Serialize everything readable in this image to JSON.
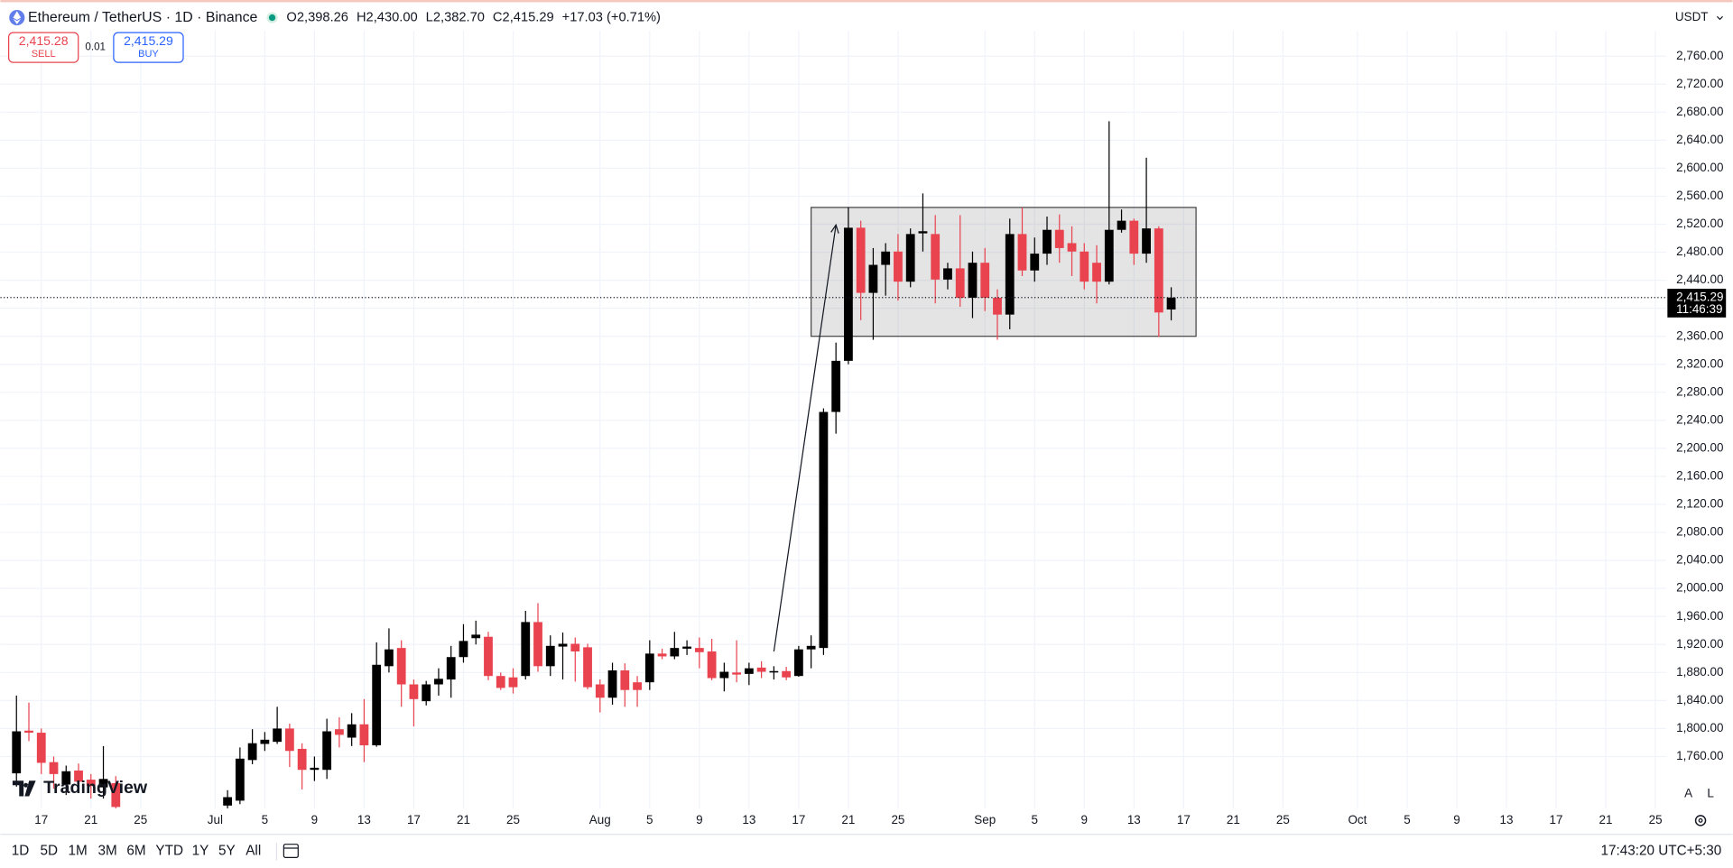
{
  "header": {
    "symbol": "Ethereum / TetherUS · 1D · Binance",
    "ohlc": [
      {
        "key": "O",
        "value": "2,398.26"
      },
      {
        "key": "H",
        "value": "2,430.00"
      },
      {
        "key": "L",
        "value": "2,382.70"
      },
      {
        "key": "C",
        "value": "2,415.29"
      }
    ],
    "change": "+17.03 (+0.71%)"
  },
  "trade": {
    "sell_price": "2,415.28",
    "sell_label": "SELL",
    "spread": "0.01",
    "buy_price": "2,415.29",
    "buy_label": "BUY"
  },
  "currency": "USDT",
  "logo": "TradingView",
  "scale_buttons": [
    "A",
    "L"
  ],
  "timeframes": [
    "1D",
    "5D",
    "1M",
    "3M",
    "6M",
    "YTD",
    "1Y",
    "5Y",
    "All"
  ],
  "clock": "17:43:20 UTC+5:30",
  "chart_data": {
    "type": "candlestick",
    "up_color": "#000000",
    "down_color": "#e8434f",
    "grid": true,
    "categories": [
      "Jun 15",
      "Jun 16",
      "Jun 17",
      "Jun 18",
      "Jun 19",
      "Jun 20",
      "Jun 21",
      "Jun 22",
      "Jun 23",
      "Jul 2",
      "Jul 3",
      "Jul 4",
      "Jul 5",
      "Jul 6",
      "Jul 7",
      "Jul 8",
      "Jul 9",
      "Jul 10",
      "Jul 11",
      "Jul 12",
      "Jul 13",
      "Jul 14",
      "Jul 15",
      "Jul 16",
      "Jul 17",
      "Jul 18",
      "Jul 19",
      "Jul 20",
      "Jul 21",
      "Jul 22",
      "Jul 23",
      "Jul 24",
      "Jul 25",
      "Jul 26",
      "Jul 27",
      "Jul 28",
      "Jul 29",
      "Jul 30",
      "Jul 31",
      "Aug 1",
      "Aug 2",
      "Aug 3",
      "Aug 4",
      "Aug 5",
      "Aug 6",
      "Aug 7",
      "Aug 8",
      "Aug 9",
      "Aug 10",
      "Aug 11",
      "Aug 12",
      "Aug 13",
      "Aug 14",
      "Aug 15",
      "Aug 16",
      "Aug 17",
      "Aug 18",
      "Aug 19",
      "Aug 20",
      "Aug 21",
      "Aug 22",
      "Aug 23",
      "Aug 24",
      "Aug 25",
      "Aug 26",
      "Aug 27",
      "Aug 28",
      "Aug 29",
      "Aug 30",
      "Aug 31",
      "Sep 1",
      "Sep 2",
      "Sep 3",
      "Sep 4",
      "Sep 5",
      "Sep 6",
      "Sep 7",
      "Sep 8",
      "Sep 9",
      "Sep 10",
      "Sep 11",
      "Sep 12",
      "Sep 13",
      "Sep 14",
      "Sep 15",
      "Sep 16"
    ],
    "open": [
      1736,
      1797,
      1794,
      1752,
      1720,
      1740,
      1727,
      1716,
      1722,
      1690,
      1697,
      1755,
      1778,
      1781,
      1800,
      1771,
      1741,
      1741,
      1799,
      1787,
      1806,
      1776,
      1889,
      1915,
      1863,
      1839,
      1863,
      1870,
      1902,
      1929,
      1931,
      1875,
      1873,
      1875,
      1952,
      1889,
      1917,
      1921,
      1916,
      1863,
      1844,
      1883,
      1866,
      1866,
      1907,
      1903,
      1914,
      1915,
      1910,
      1872,
      1880,
      1878,
      1887,
      1880,
      1882,
      1875,
      1913,
      1915,
      2252,
      2325,
      2515,
      2422,
      2462,
      2481,
      2438,
      2507,
      2506,
      2441,
      2457,
      2415,
      2465,
      2415,
      2391,
      2506,
      2454,
      2478,
      2512,
      2493,
      2481,
      2465,
      2438,
      2512,
      2525,
      2478,
      2514,
      2398.26
    ],
    "high": [
      1847,
      1837,
      1800,
      1760,
      1747,
      1750,
      1735,
      1775,
      1732,
      1712,
      1773,
      1799,
      1795,
      1831,
      1807,
      1779,
      1760,
      1814,
      1816,
      1822,
      1842,
      1923,
      1943,
      1926,
      1870,
      1868,
      1886,
      1918,
      1949,
      1954,
      1938,
      1880,
      1886,
      1968,
      1979,
      1933,
      1937,
      1930,
      1921,
      1870,
      1894,
      1893,
      1875,
      1926,
      1914,
      1938,
      1926,
      1930,
      1928,
      1894,
      1926,
      1894,
      1896,
      1889,
      1888,
      1918,
      1933,
      2257,
      2351,
      2544,
      2525,
      2486,
      2493,
      2506,
      2514,
      2564,
      2533,
      2465,
      2533,
      2481,
      2486,
      2427,
      2528,
      2544,
      2501,
      2531,
      2534,
      2517,
      2493,
      2490,
      2667,
      2541,
      2528,
      2615,
      2517,
      2430
    ],
    "low": [
      1717,
      1782,
      1735,
      1714,
      1705,
      1708,
      1700,
      1700,
      1680,
      1683,
      1692,
      1749,
      1768,
      1778,
      1745,
      1713,
      1725,
      1728,
      1773,
      1775,
      1752,
      1774,
      1880,
      1831,
      1803,
      1833,
      1847,
      1844,
      1894,
      1920,
      1869,
      1855,
      1850,
      1870,
      1881,
      1875,
      1870,
      1867,
      1856,
      1823,
      1834,
      1831,
      1831,
      1855,
      1899,
      1899,
      1905,
      1886,
      1869,
      1853,
      1866,
      1862,
      1872,
      1870,
      1869,
      1874,
      1886,
      1905,
      2221,
      2320,
      2383,
      2355,
      2418,
      2411,
      2430,
      2481,
      2407,
      2427,
      2402,
      2386,
      2396,
      2355,
      2370,
      2446,
      2438,
      2462,
      2465,
      2446,
      2427,
      2407,
      2434,
      2508,
      2462,
      2465,
      2359,
      2382.7
    ],
    "close": [
      1796,
      1794,
      1751,
      1735,
      1739,
      1724,
      1718,
      1728,
      1688,
      1702,
      1757,
      1779,
      1784,
      1800,
      1768,
      1741,
      1744,
      1796,
      1791,
      1806,
      1776,
      1891,
      1913,
      1863,
      1842,
      1863,
      1871,
      1902,
      1925,
      1934,
      1875,
      1858,
      1859,
      1952,
      1889,
      1918,
      1921,
      1910,
      1859,
      1844,
      1883,
      1855,
      1855,
      1907,
      1903,
      1915,
      1917,
      1909,
      1872,
      1881,
      1877,
      1886,
      1881,
      1882,
      1873,
      1913,
      1918,
      2252,
      2325,
      2515,
      2422,
      2462,
      2481,
      2438,
      2506,
      2510,
      2441,
      2457,
      2415,
      2465,
      2415,
      2391,
      2506,
      2454,
      2478,
      2512,
      2486,
      2481,
      2438,
      2438,
      2512,
      2525,
      2478,
      2514,
      2394,
      2415.29
    ],
    "xlim": [
      "Jun 14",
      "Oct 26"
    ],
    "xticks": [
      {
        "value": "Jun 17",
        "label": "17"
      },
      {
        "value": "Jun 21",
        "label": "21"
      },
      {
        "value": "Jun 25",
        "label": "25"
      },
      {
        "value": "Jul 1",
        "label": "Jul"
      },
      {
        "value": "Jul 5",
        "label": "5"
      },
      {
        "value": "Jul 9",
        "label": "9"
      },
      {
        "value": "Jul 13",
        "label": "13"
      },
      {
        "value": "Jul 17",
        "label": "17"
      },
      {
        "value": "Jul 21",
        "label": "21"
      },
      {
        "value": "Jul 25",
        "label": "25"
      },
      {
        "value": "Aug 1",
        "label": "Aug"
      },
      {
        "value": "Aug 5",
        "label": "5"
      },
      {
        "value": "Aug 9",
        "label": "9"
      },
      {
        "value": "Aug 13",
        "label": "13"
      },
      {
        "value": "Aug 17",
        "label": "17"
      },
      {
        "value": "Aug 21",
        "label": "21"
      },
      {
        "value": "Aug 25",
        "label": "25"
      },
      {
        "value": "Sep 1",
        "label": "Sep"
      },
      {
        "value": "Sep 5",
        "label": "5"
      },
      {
        "value": "Sep 9",
        "label": "9"
      },
      {
        "value": "Sep 13",
        "label": "13"
      },
      {
        "value": "Sep 17",
        "label": "17"
      },
      {
        "value": "Sep 21",
        "label": "21"
      },
      {
        "value": "Sep 25",
        "label": "25"
      },
      {
        "value": "Oct 1",
        "label": "Oct"
      },
      {
        "value": "Oct 5",
        "label": "5"
      },
      {
        "value": "Oct 9",
        "label": "9"
      },
      {
        "value": "Oct 13",
        "label": "13"
      },
      {
        "value": "Oct 17",
        "label": "17"
      },
      {
        "value": "Oct 21",
        "label": "21"
      },
      {
        "value": "Oct 25",
        "label": "25"
      }
    ],
    "ylim": [
      1686,
      2796
    ],
    "yticks": [
      {
        "value": 1760,
        "label": "1,760.00"
      },
      {
        "value": 1800,
        "label": "1,800.00"
      },
      {
        "value": 1840,
        "label": "1,840.00"
      },
      {
        "value": 1880,
        "label": "1,880.00"
      },
      {
        "value": 1920,
        "label": "1,920.00"
      },
      {
        "value": 1960,
        "label": "1,960.00"
      },
      {
        "value": 2000,
        "label": "2,000.00"
      },
      {
        "value": 2040,
        "label": "2,040.00"
      },
      {
        "value": 2080,
        "label": "2,080.00"
      },
      {
        "value": 2120,
        "label": "2,120.00"
      },
      {
        "value": 2160,
        "label": "2,160.00"
      },
      {
        "value": 2200,
        "label": "2,200.00"
      },
      {
        "value": 2240,
        "label": "2,240.00"
      },
      {
        "value": 2280,
        "label": "2,280.00"
      },
      {
        "value": 2320,
        "label": "2,320.00"
      },
      {
        "value": 2360,
        "label": "2,360.00"
      },
      {
        "value": 2400,
        "label": "2,400.00"
      },
      {
        "value": 2440,
        "label": "2,440.00"
      },
      {
        "value": 2480,
        "label": "2,480.00"
      },
      {
        "value": 2520,
        "label": "2,520.00"
      },
      {
        "value": 2560,
        "label": "2,560.00"
      },
      {
        "value": 2600,
        "label": "2,600.00"
      },
      {
        "value": 2640,
        "label": "2,640.00"
      },
      {
        "value": 2680,
        "label": "2,680.00"
      },
      {
        "value": 2720,
        "label": "2,720.00"
      },
      {
        "value": 2760,
        "label": "2,760.00"
      }
    ],
    "last_price": {
      "value": 2415.29,
      "label": "2,415.29",
      "countdown": "11:46:39"
    },
    "box": {
      "start": "Aug 18",
      "end": "Sep 18",
      "top": 2544,
      "bottom": 2360
    },
    "trend_line": {
      "from": {
        "date": "Aug 15",
        "price": 1910
      },
      "to": {
        "date": "Aug 20",
        "price": 2519
      }
    }
  }
}
